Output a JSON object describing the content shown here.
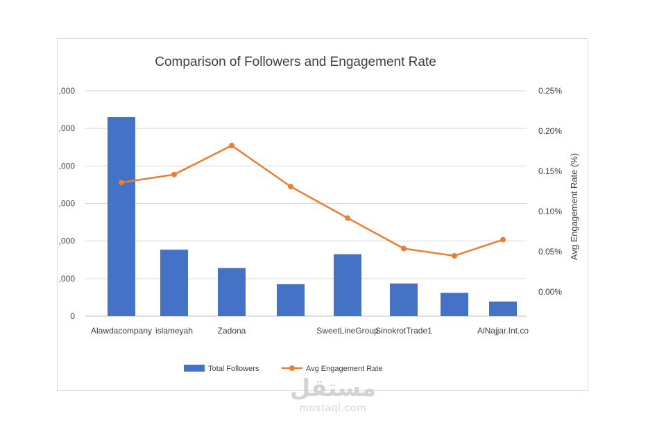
{
  "chart_data": {
    "type": "bar+line",
    "title": "Comparison of Followers and Engagement Rate",
    "categories": [
      "Alawdacompany",
      "islameyah",
      "Zadona",
      "",
      "SweetLineGroup",
      "SinokrotTrade1",
      "",
      "AlNajjar.Int.co"
    ],
    "left_axis": {
      "ticks": [
        ",000",
        ",000",
        ",000",
        ",000",
        ",000",
        ",000",
        "0"
      ],
      "ylim": [
        0,
        6
      ]
    },
    "right_axis": {
      "label": "Avg Engagement Rate (%)",
      "ticks": [
        "0.25%",
        "0.20%",
        "0.15%",
        "0.10%",
        "0.05%",
        "0.00%"
      ],
      "ylim": [
        -0.03,
        0.25
      ]
    },
    "series": [
      {
        "name": "Total Followers",
        "type": "bar",
        "color": "#4472C4",
        "values": [
          5.3,
          1.77,
          1.28,
          0.85,
          1.65,
          0.87,
          0.62,
          0.39
        ]
      },
      {
        "name": "Avg Engagement Rate",
        "type": "line",
        "color": "#ED7D31",
        "values": [
          0.136,
          0.146,
          0.182,
          0.131,
          0.092,
          0.054,
          0.045,
          0.065
        ]
      }
    ],
    "legend": "bottom",
    "grid": true
  },
  "watermark": {
    "main": "مستقل",
    "sub": "mostaql.com"
  }
}
